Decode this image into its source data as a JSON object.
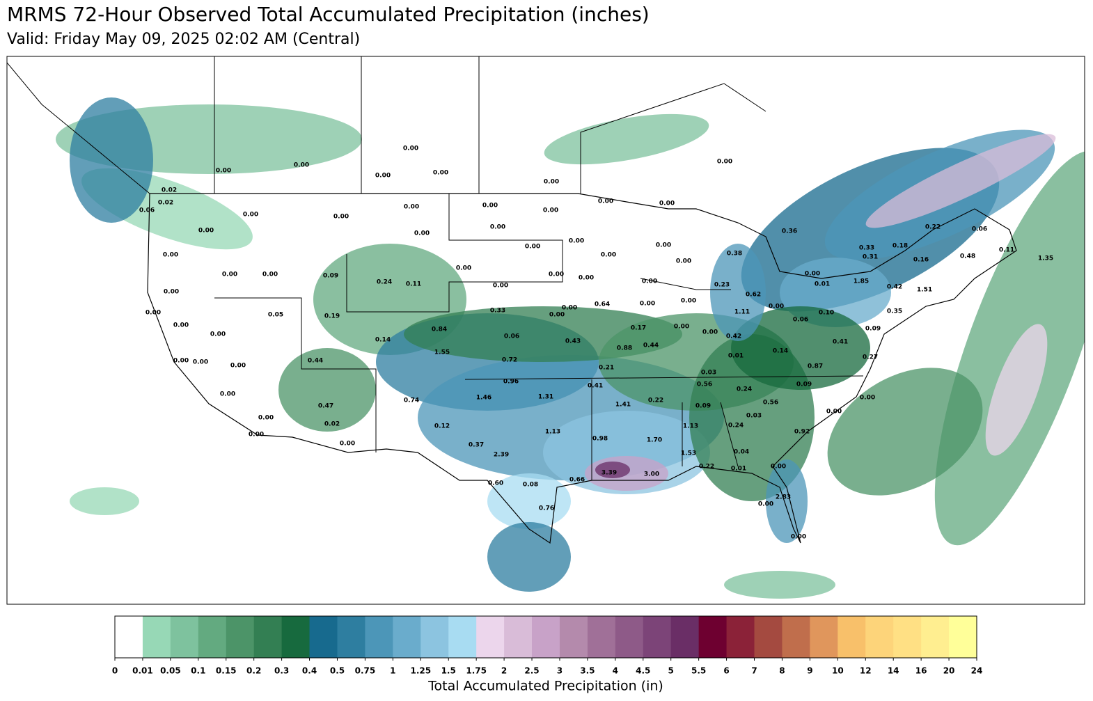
{
  "title": "MRMS 72-Hour Observed Total Accumulated Precipitation (inches)",
  "subtitle": "Valid: Friday May 09, 2025 02:02 AM (Central)",
  "map": {
    "labels": [
      "0.00",
      "0.00",
      "0.00",
      "0.00",
      "0.00",
      "0.00",
      "0.00",
      "0.02",
      "0.02",
      "0.06",
      "0.00",
      "0.00",
      "0.00",
      "0.00",
      "0.00",
      "0.00",
      "0.00",
      "0.00",
      "0.00",
      "0.00",
      "0.00",
      "0.36",
      "0.22",
      "0.06",
      "0.00",
      "0.00",
      "0.33",
      "0.18",
      "0.00",
      "0.00",
      "0.38",
      "0.31",
      "0.16",
      "0.48",
      "0.11",
      "1.35",
      "0.00",
      "0.00",
      "0.00",
      "0.00",
      "0.09",
      "0.00",
      "0.00",
      "0.00",
      "0.24",
      "0.11",
      "0.00",
      "0.00",
      "0.23",
      "0.01",
      "1.85",
      "0.42",
      "1.51",
      "0.00",
      "0.62",
      "0.64",
      "0.00",
      "0.00",
      "0.00",
      "0.00",
      "0.33",
      "0.00",
      "0.05",
      "0.19",
      "0.00",
      "1.11",
      "0.10",
      "0.35",
      "0.06",
      "0.00",
      "0.84",
      "0.17",
      "0.00",
      "0.00",
      "0.09",
      "0.00",
      "0.06",
      "0.42",
      "0.14",
      "0.43",
      "0.88",
      "0.44",
      "0.41",
      "1.55",
      "0.14",
      "0.01",
      "0.27",
      "0.00",
      "0.00",
      "0.44",
      "0.72",
      "0.00",
      "0.21",
      "0.87",
      "0.03",
      "0.96",
      "0.56",
      "0.41",
      "0.09",
      "0.24",
      "0.00",
      "1.46",
      "1.31",
      "0.74",
      "0.22",
      "0.00",
      "1.41",
      "0.47",
      "0.09",
      "0.56",
      "0.03",
      "0.00",
      "0.00",
      "0.02",
      "0.12",
      "0.24",
      "1.13",
      "0.00",
      "1.13",
      "0.92",
      "0.98",
      "1.70",
      "0.00",
      "0.37",
      "1.53",
      "0.04",
      "2.39",
      "0.22",
      "0.01",
      "0.00",
      "3.39",
      "3.00",
      "0.60",
      "0.08",
      "0.66",
      "2.83",
      "0.00",
      "0.76",
      "0.00"
    ]
  },
  "colorbar": {
    "label": "Total Accumulated Precipitation (in)",
    "ticks": [
      0,
      0.01,
      0.05,
      0.1,
      0.15,
      0.2,
      0.3,
      0.4,
      0.5,
      0.75,
      1,
      1.25,
      1.5,
      1.75,
      2,
      2.5,
      3,
      3.5,
      4,
      4.5,
      5,
      5.5,
      6,
      7,
      8,
      9,
      10,
      12,
      14,
      16,
      20,
      24
    ],
    "colors": [
      "#ffffff",
      "#97d8b6",
      "#7ec29e",
      "#63aa80",
      "#4c9468",
      "#337f53",
      "#176a3e",
      "#176a8e",
      "#2e7ea0",
      "#4c96b8",
      "#6aaccc",
      "#8cc4e0",
      "#a8dcf2",
      "#ecd6ec",
      "#d9bcd8",
      "#c8a2c8",
      "#b48aac",
      "#a07098",
      "#8e5a88",
      "#7c4478",
      "#6a2e66",
      "#6e0030",
      "#8b2238",
      "#a44a40",
      "#c06e4c",
      "#e0965c",
      "#f8c06a",
      "#fdd47a",
      "#ffe084",
      "#ffee90",
      "#ffff99"
    ]
  }
}
